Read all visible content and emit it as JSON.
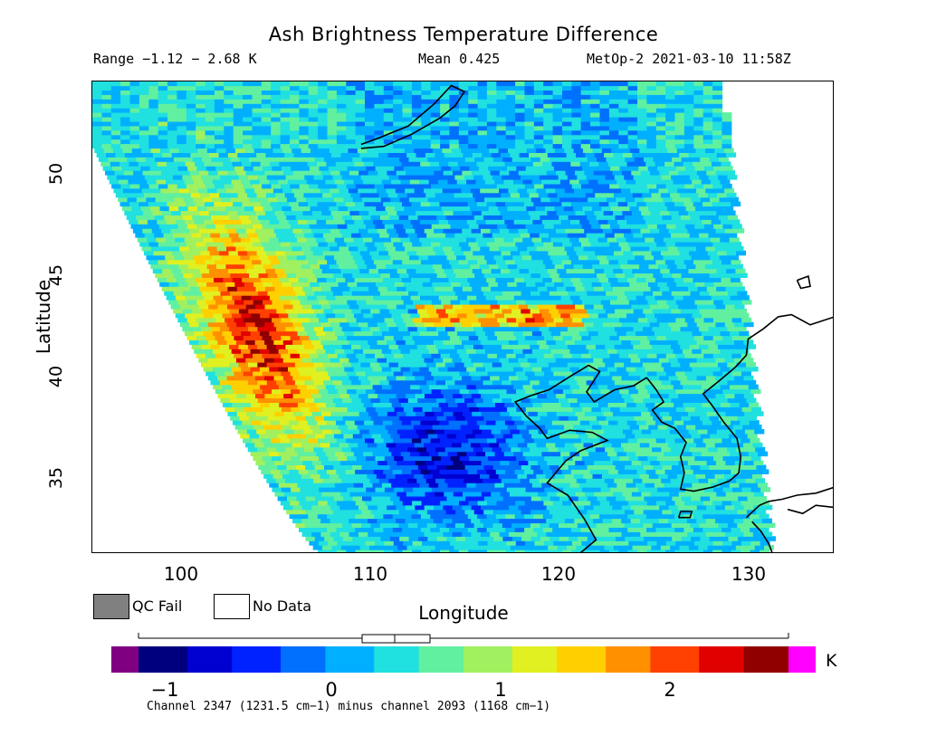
{
  "title": "Ash Brightness Temperature Difference",
  "range_text": "Range −1.12 − 2.68 K",
  "mean_text": "Mean 0.425",
  "satellite_time": "MetOp-2 2021-03-10 11:58Z",
  "x_axis": {
    "label": "Longitude",
    "ticks": [
      "100",
      "110",
      "120",
      "130"
    ]
  },
  "y_axis": {
    "label": "Latitude",
    "ticks": [
      "35",
      "40",
      "45",
      "50"
    ]
  },
  "legend": {
    "qc_fail": "QC Fail",
    "no_data": "No Data",
    "qc_fail_color": "#808080",
    "no_data_color": "#ffffff"
  },
  "colorbar": {
    "ticks": [
      "−1",
      "0",
      "1",
      "2"
    ],
    "unit": "K",
    "underflow_color": "#7f0080",
    "overflow_color": "#ff00ff",
    "colors": [
      "#00007f",
      "#0000d0",
      "#0022ff",
      "#0070ff",
      "#00b0ff",
      "#20e0e0",
      "#60f0a0",
      "#a0f060",
      "#e0f020",
      "#ffd000",
      "#ff9000",
      "#ff4000",
      "#e00000",
      "#900000"
    ]
  },
  "caption": "Channel 2347 (1231.5 cm−1) minus channel 2093 (1168 cm−1)",
  "chart_data": {
    "type": "heatmap",
    "title": "Ash Brightness Temperature Difference",
    "xlabel": "Longitude",
    "ylabel": "Latitude",
    "xlim": [
      95,
      134.5
    ],
    "ylim": [
      31.5,
      54.8
    ],
    "value_range": [
      -1.12,
      2.68
    ],
    "mean": 0.425,
    "units": "K",
    "colorbar_range": [
      -1.15,
      2.7
    ],
    "features": [
      {
        "name": "high ash BTD band",
        "region": "lon 100-108, lat 38-47",
        "approx_value": 2.3
      },
      {
        "name": "weak plume streak",
        "region": "lon 113-121, lat 42.8-43.5",
        "approx_value": 1.8
      },
      {
        "name": "low values",
        "region": "lon 110-118, lat 33-39",
        "approx_value": -0.8
      }
    ]
  }
}
